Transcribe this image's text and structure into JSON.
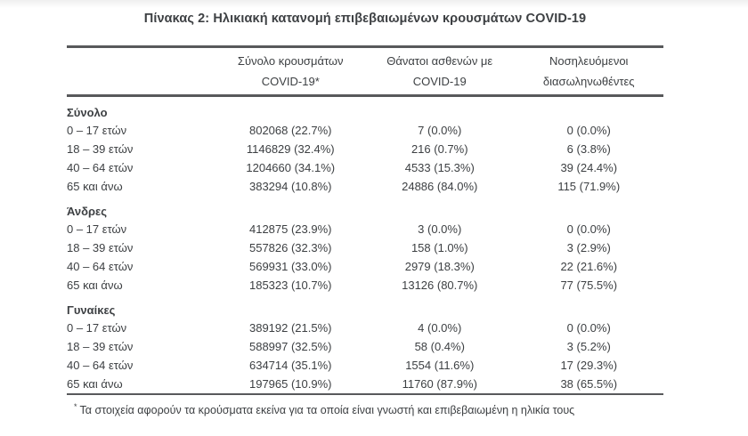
{
  "page": {
    "title": "Πίνακας 2: Ηλικιακή κατανομή επιβεβαιωμένων κρουσμάτων COVID-19",
    "footnote": {
      "marker": "*",
      "text": "Τα στοιχεία αφορούν τα κρούσματα εκείνα για τα οποία είναι γνωστή και επιβεβαιωμένη η ηλικία τους"
    }
  },
  "table": {
    "columns": [
      {
        "line1": "Σύνολο κρουσμάτων",
        "line2": "COVID-19*"
      },
      {
        "line1": "Θάνατοι ασθενών με",
        "line2": "COVID-19"
      },
      {
        "line1": "Νοσηλευόμενοι",
        "line2": "διασωληνωθέντες"
      }
    ],
    "sections": [
      {
        "label": "Σύνολο",
        "rows": [
          {
            "age": "0 – 17 ετών",
            "cases": "802068 (22.7%)",
            "deaths": "7 (0.0%)",
            "intubated": "0 (0.0%)"
          },
          {
            "age": "18 – 39 ετών",
            "cases": "1146829 (32.4%)",
            "deaths": "216 (0.7%)",
            "intubated": "6 (3.8%)"
          },
          {
            "age": "40 – 64 ετών",
            "cases": "1204660 (34.1%)",
            "deaths": "4533 (15.3%)",
            "intubated": "39 (24.4%)"
          },
          {
            "age": "65 και άνω",
            "cases": "383294 (10.8%)",
            "deaths": "24886 (84.0%)",
            "intubated": "115 (71.9%)"
          }
        ]
      },
      {
        "label": "Άνδρες",
        "rows": [
          {
            "age": "0 – 17 ετών",
            "cases": "412875 (23.9%)",
            "deaths": "3 (0.0%)",
            "intubated": "0 (0.0%)"
          },
          {
            "age": "18 – 39 ετών",
            "cases": "557826 (32.3%)",
            "deaths": "158 (1.0%)",
            "intubated": "3 (2.9%)"
          },
          {
            "age": "40 – 64 ετών",
            "cases": "569931 (33.0%)",
            "deaths": "2979 (18.3%)",
            "intubated": "22 (21.6%)"
          },
          {
            "age": "65 και άνω",
            "cases": "185323 (10.7%)",
            "deaths": "13126 (80.7%)",
            "intubated": "77 (75.5%)"
          }
        ]
      },
      {
        "label": "Γυναίκες",
        "rows": [
          {
            "age": "0 – 17 ετών",
            "cases": "389192 (21.5%)",
            "deaths": "4 (0.0%)",
            "intubated": "0 (0.0%)"
          },
          {
            "age": "18 – 39 ετών",
            "cases": "588997 (32.5%)",
            "deaths": "58 (0.4%)",
            "intubated": "3 (5.2%)"
          },
          {
            "age": "40 – 64 ετών",
            "cases": "634714 (35.1%)",
            "deaths": "1554 (11.6%)",
            "intubated": "17 (29.3%)"
          },
          {
            "age": "65 και άνω",
            "cases": "197965 (10.9%)",
            "deaths": "11760 (87.9%)",
            "intubated": "38 (65.5%)"
          }
        ]
      }
    ]
  },
  "colors": {
    "text": "#3d4043",
    "rule": "#58595b",
    "background": "#ffffff"
  }
}
